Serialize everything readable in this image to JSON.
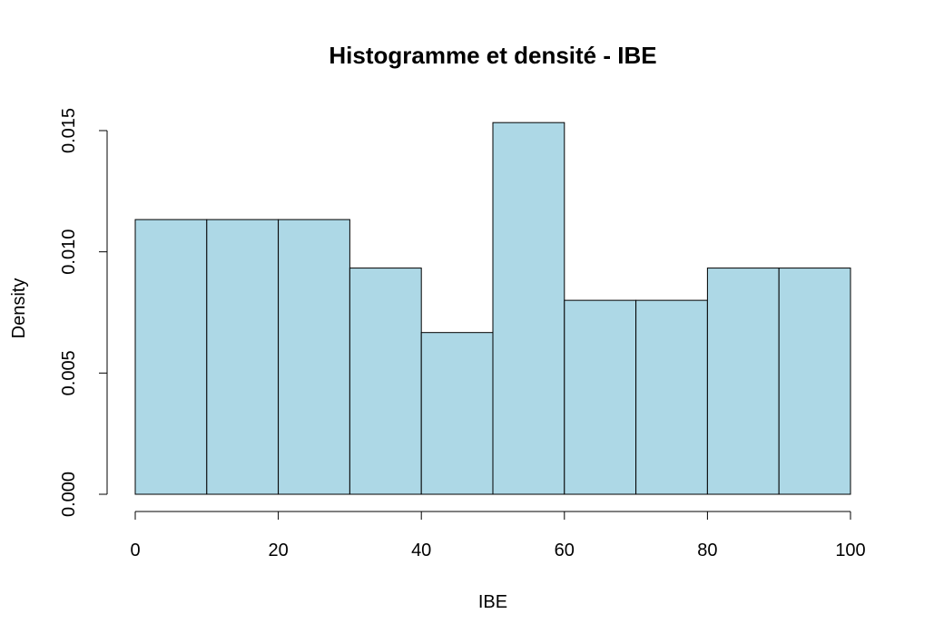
{
  "chart_data": {
    "type": "bar",
    "title": "Histogramme et densité - IBE",
    "xlabel": "IBE",
    "ylabel": "Density",
    "bin_edges": [
      0,
      10,
      20,
      30,
      40,
      50,
      60,
      70,
      80,
      90,
      100
    ],
    "values": [
      0.01133,
      0.01133,
      0.01133,
      0.00933,
      0.00667,
      0.01533,
      0.008,
      0.008,
      0.00933,
      0.00933
    ],
    "xlim": [
      0,
      100
    ],
    "ylim": [
      0,
      0.015
    ],
    "x_ticks": [
      0,
      20,
      40,
      60,
      80,
      100
    ],
    "x_tick_labels": [
      "0",
      "20",
      "40",
      "60",
      "80",
      "100"
    ],
    "y_ticks": [
      0,
      0.005,
      0.01,
      0.015
    ],
    "y_tick_labels": [
      "0.000",
      "0.005",
      "0.010",
      "0.015"
    ],
    "bar_color": "#add8e6",
    "grid": false,
    "legend": "none"
  }
}
